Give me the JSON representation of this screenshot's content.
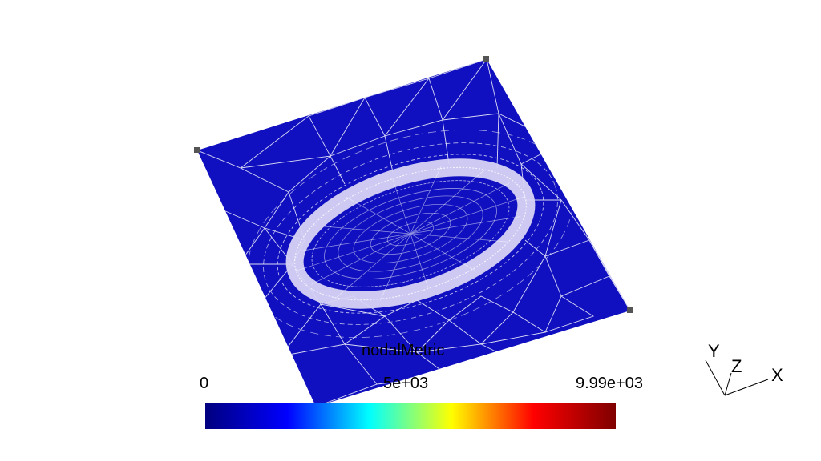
{
  "legend": {
    "title": "nodalMetric",
    "ticks": {
      "min": "0",
      "mid": "5e+03",
      "max": "9.99e+03"
    },
    "colormap": [
      "#00007f",
      "#0000ff",
      "#00ffff",
      "#ffff00",
      "#ff0000",
      "#7f0000"
    ],
    "range": [
      0,
      9990
    ]
  },
  "axes": {
    "x": "X",
    "y": "Y",
    "z": "Z"
  },
  "colors": {
    "mesh_fill": "#1010c0",
    "mesh_edges": "#ffffff",
    "refined_band": "#d8d4f4",
    "corner_markers": "#555555"
  }
}
